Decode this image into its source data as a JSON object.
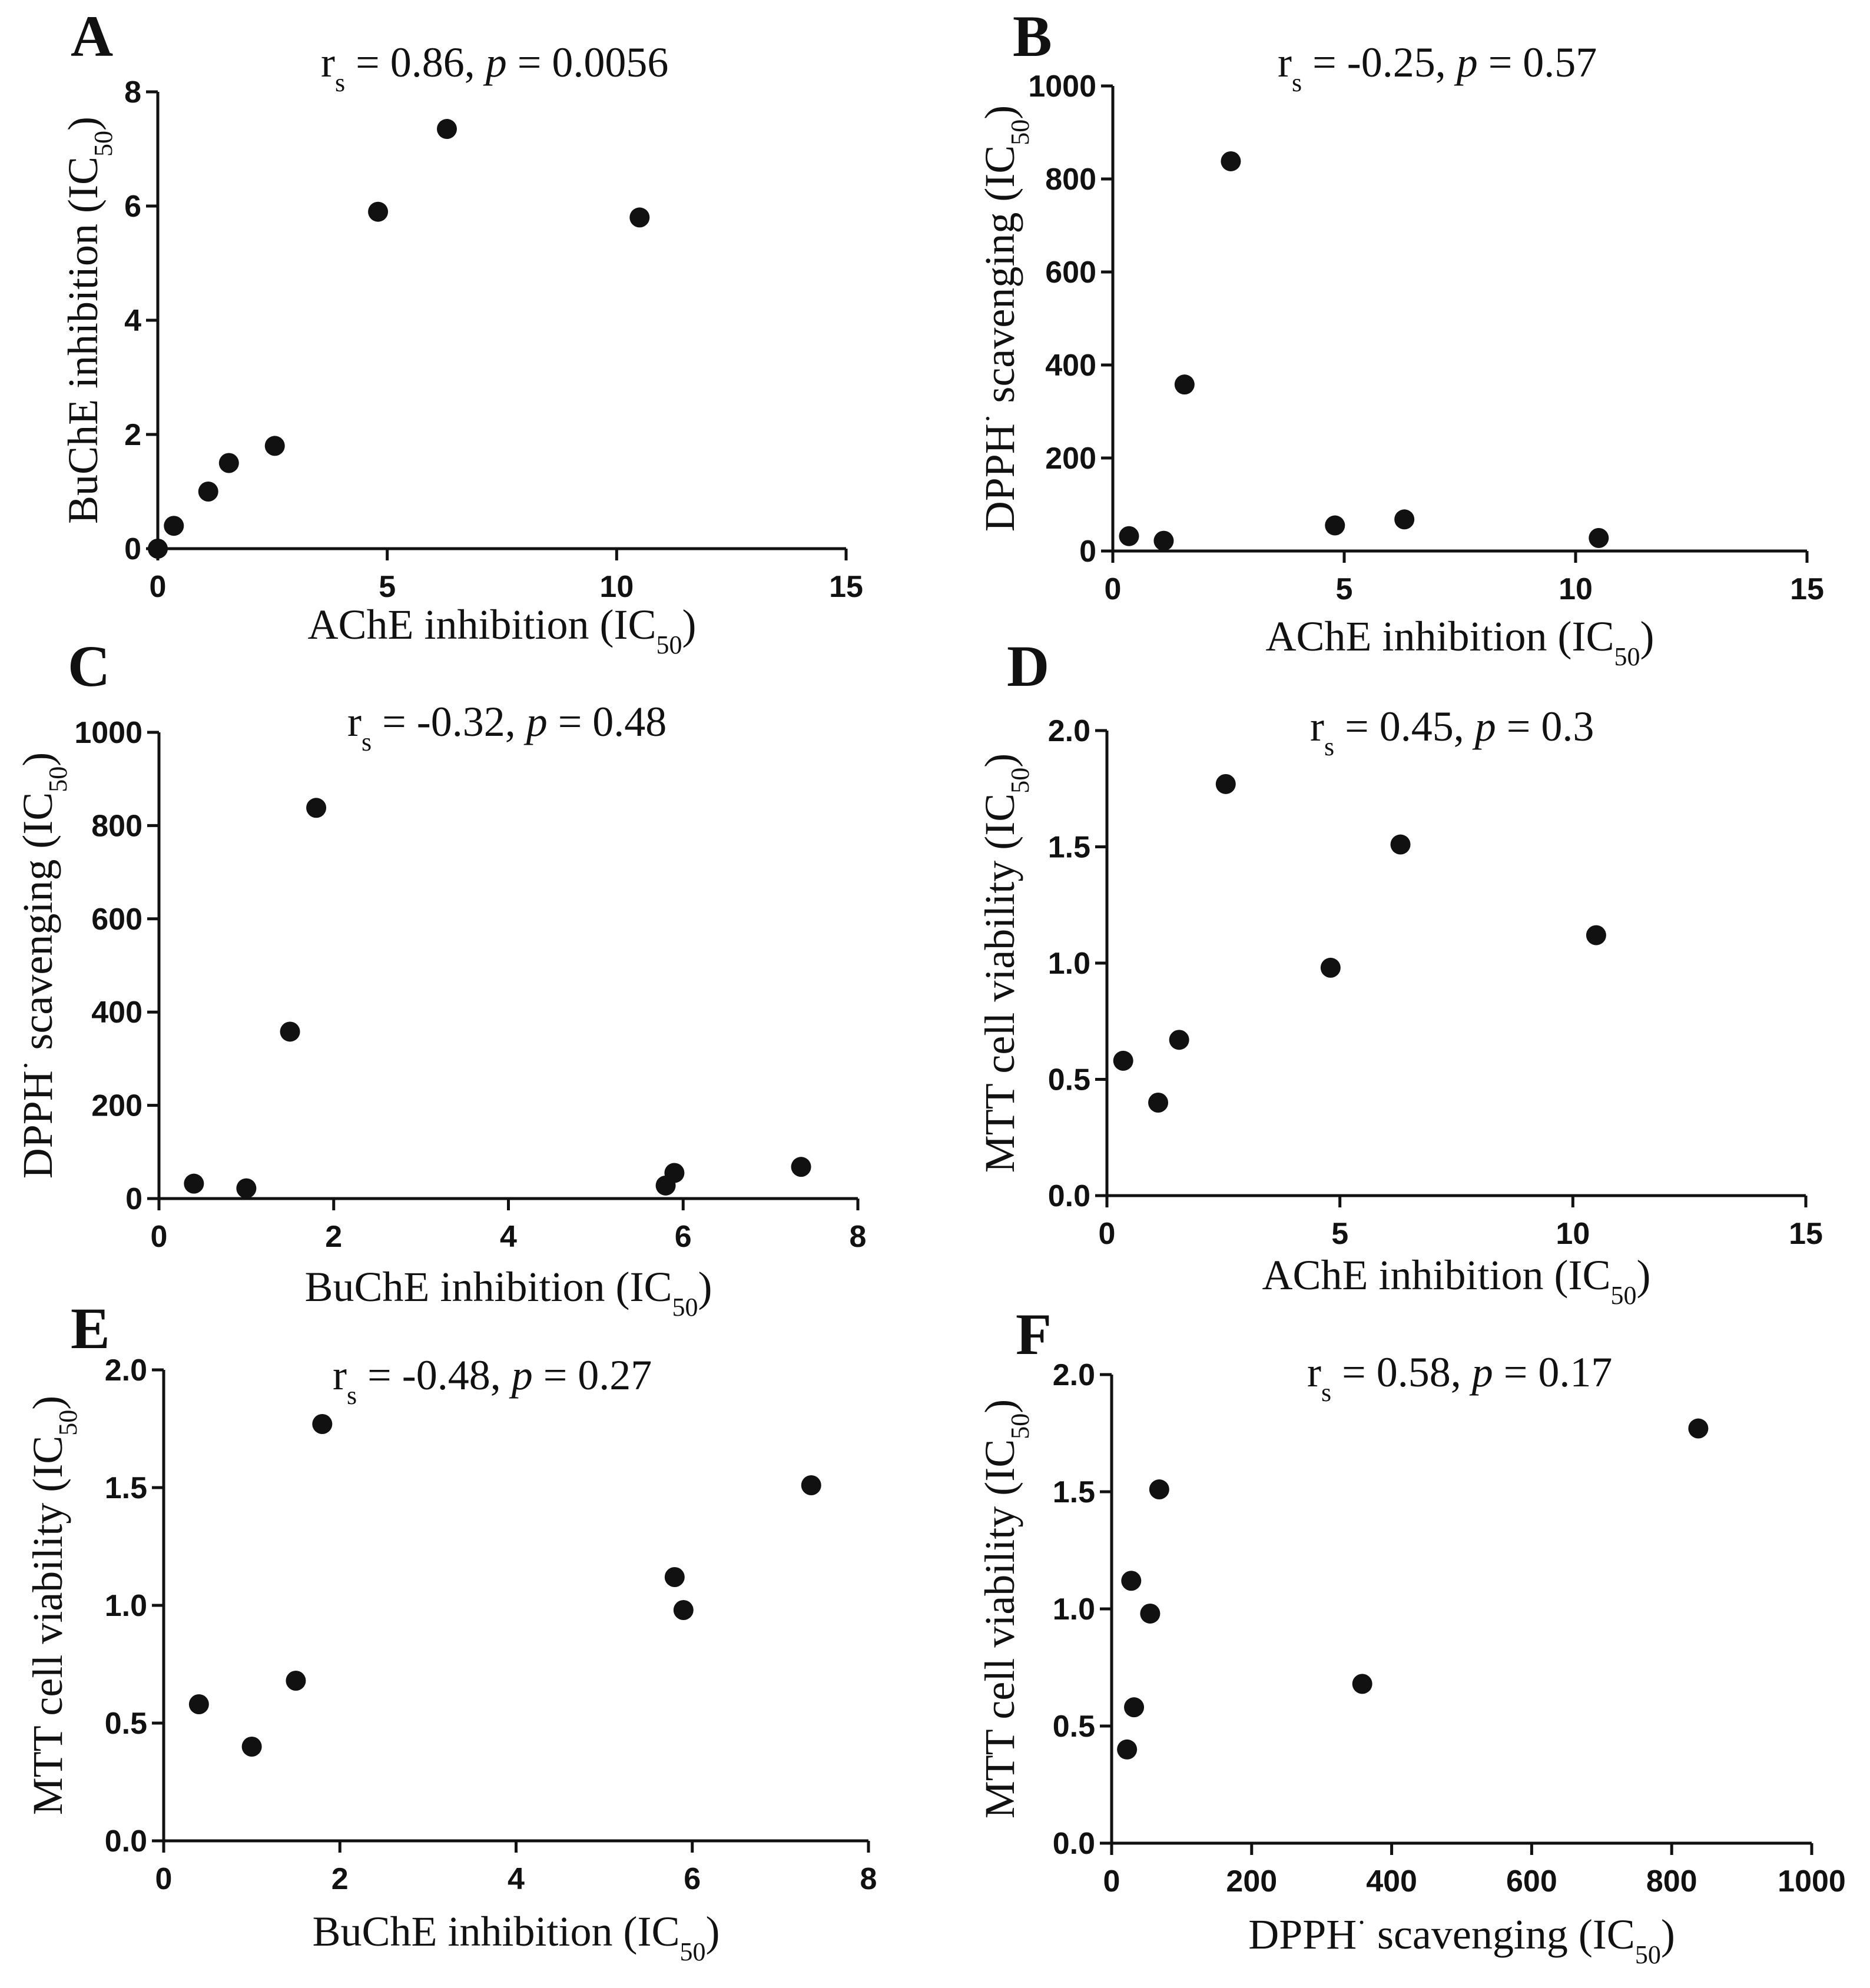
{
  "chart_data": [
    {
      "type": "scatter",
      "panel_letter": "A",
      "annotation": {
        "rs_sym": "r",
        "rs_sub": "s",
        "rs_value": " = 0.86, ",
        "p_sym": "p",
        "p_value": " = 0.0056"
      },
      "xlabel": {
        "main": "AChE inhibition (IC",
        "sub": "50",
        "close": ")"
      },
      "ylabel": {
        "main": "BuChE inhibition (IC",
        "sub": "50",
        "close": ")"
      },
      "xlim": [
        0,
        15
      ],
      "ylim": [
        0,
        8
      ],
      "xticks": [
        0,
        5,
        10,
        15
      ],
      "yticks": [
        0,
        2,
        4,
        6,
        8
      ],
      "x": [
        0,
        0.35,
        1.1,
        1.55,
        2.55,
        4.8,
        6.3,
        10.5
      ],
      "y": [
        0,
        0.4,
        1.0,
        1.5,
        1.8,
        5.9,
        7.35,
        5.8
      ]
    },
    {
      "type": "scatter",
      "panel_letter": "B",
      "annotation": {
        "rs_sym": "r",
        "rs_sub": "s",
        "rs_value": " = -0.25, ",
        "p_sym": "p",
        "p_value": " = 0.57"
      },
      "xlabel": {
        "main": "AChE inhibition (IC",
        "sub": "50",
        "close": ")"
      },
      "ylabel": {
        "main": "DPPH",
        "sup": "·",
        "main2": " scavenging  (IC",
        "sub": "50",
        "close": ")"
      },
      "xlim": [
        0,
        15
      ],
      "ylim": [
        0,
        1000
      ],
      "xticks": [
        0,
        5,
        10,
        15
      ],
      "yticks": [
        0,
        200,
        400,
        600,
        800,
        1000
      ],
      "x": [
        0.35,
        1.1,
        1.55,
        2.55,
        4.8,
        6.3,
        10.5
      ],
      "y": [
        32,
        22,
        358,
        838,
        55,
        68,
        28
      ]
    },
    {
      "type": "scatter",
      "panel_letter": "C",
      "annotation": {
        "rs_sym": "r",
        "rs_sub": "s",
        "rs_value": " = -0.32, ",
        "p_sym": "p",
        "p_value": " = 0.48"
      },
      "xlabel": {
        "main": "BuChE inhibition (IC",
        "sub": "50",
        "close": ")"
      },
      "ylabel": {
        "main": "DPPH",
        "sup": "·",
        "main2": " scavenging  (IC",
        "sub": "50",
        "close": ")"
      },
      "xlim": [
        0,
        8
      ],
      "ylim": [
        0,
        1000
      ],
      "xticks": [
        0,
        2,
        4,
        6,
        8
      ],
      "yticks": [
        0,
        200,
        400,
        600,
        800,
        1000
      ],
      "x": [
        0.4,
        1.0,
        1.5,
        1.8,
        5.8,
        5.9,
        7.35
      ],
      "y": [
        32,
        22,
        358,
        838,
        28,
        55,
        68
      ]
    },
    {
      "type": "scatter",
      "panel_letter": "D",
      "annotation": {
        "rs_sym": "r",
        "rs_sub": "s",
        "rs_value": " = 0.45, ",
        "p_sym": "p",
        "p_value": " = 0.3"
      },
      "xlabel": {
        "main": "AChE inhibition (IC",
        "sub": "50",
        "close": ")"
      },
      "ylabel": {
        "main": "MTT cell viability  (IC",
        "sub": "50",
        "close": ")"
      },
      "xlim": [
        0,
        15
      ],
      "ylim": [
        0,
        2
      ],
      "xticks": [
        0,
        5,
        10,
        15
      ],
      "yticks": [
        0.0,
        0.5,
        1.0,
        1.5,
        2.0
      ],
      "x": [
        0.35,
        1.1,
        1.55,
        2.55,
        4.8,
        6.3,
        10.5
      ],
      "y": [
        0.58,
        0.4,
        0.67,
        1.77,
        0.98,
        1.51,
        1.12
      ]
    },
    {
      "type": "scatter",
      "panel_letter": "E",
      "annotation": {
        "rs_sym": "r",
        "rs_sub": "s",
        "rs_value": " = -0.48, ",
        "p_sym": "p",
        "p_value": " = 0.27"
      },
      "xlabel": {
        "main": "BuChE inhibition (IC",
        "sub": "50",
        "close": ")"
      },
      "ylabel": {
        "main": "MTT cell viability  (IC",
        "sub": "50",
        "close": ")"
      },
      "xlim": [
        0,
        8
      ],
      "ylim": [
        0,
        2
      ],
      "xticks": [
        0,
        2,
        4,
        6,
        8
      ],
      "yticks": [
        0.0,
        0.5,
        1.0,
        1.5,
        2.0
      ],
      "x": [
        0.4,
        1.0,
        1.5,
        1.8,
        5.8,
        5.9,
        7.35
      ],
      "y": [
        0.58,
        0.4,
        0.68,
        1.77,
        1.12,
        0.98,
        1.51
      ]
    },
    {
      "type": "scatter",
      "panel_letter": "F",
      "annotation": {
        "rs_sym": "r",
        "rs_sub": "s",
        "rs_value": " = 0.58, ",
        "p_sym": "p",
        "p_value": " = 0.17"
      },
      "xlabel": {
        "main": "DPPH",
        "sup": "·",
        "main2": " scavenging  (IC",
        "sub": "50",
        "close": ")"
      },
      "ylabel": {
        "main": "MTT cell viability  (IC",
        "sub": "50",
        "close": ")"
      },
      "xlim": [
        0,
        1000
      ],
      "ylim": [
        0,
        2
      ],
      "xticks": [
        0,
        200,
        400,
        600,
        800,
        1000
      ],
      "yticks": [
        0.0,
        0.5,
        1.0,
        1.5,
        2.0
      ],
      "x": [
        22,
        28,
        32,
        55,
        68,
        358,
        838
      ],
      "y": [
        0.4,
        1.12,
        0.58,
        0.98,
        1.51,
        0.68,
        1.77
      ]
    }
  ]
}
